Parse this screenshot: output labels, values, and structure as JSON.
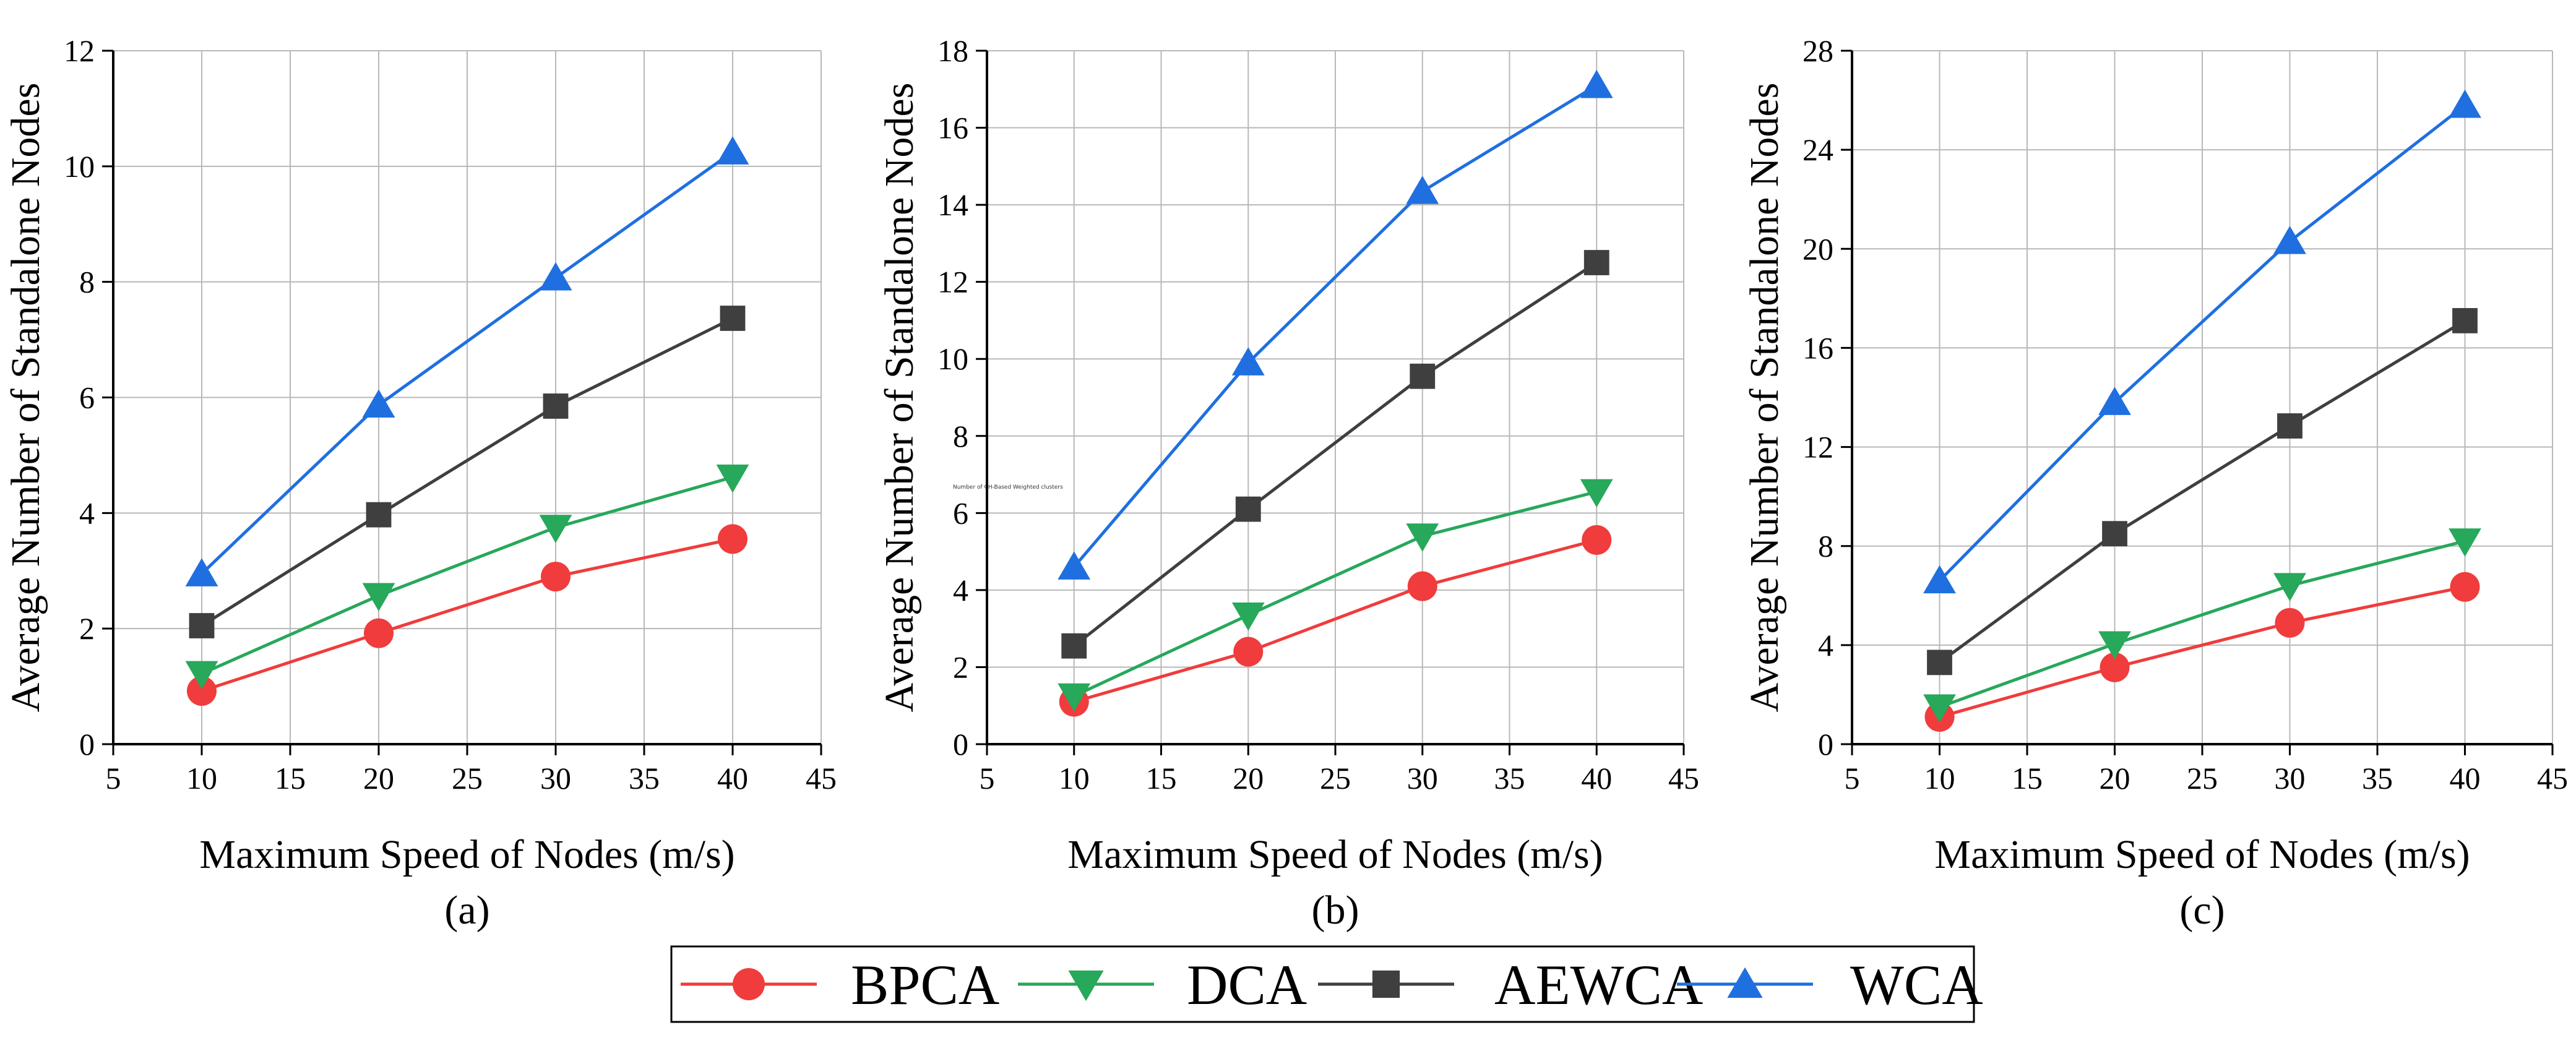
{
  "chart_data": [
    {
      "type": "line",
      "caption": "(a)",
      "xlabel": "Maximum Speed of Nodes (m/s)",
      "ylabel": "Average Number of Standalone Nodes",
      "xlim": [
        5,
        45
      ],
      "ylim": [
        0,
        12
      ],
      "xticks": [
        "5",
        "10",
        "15",
        "20",
        "25",
        "30",
        "35",
        "40",
        "45"
      ],
      "yticks": [
        "0",
        "2",
        "4",
        "6",
        "8",
        "10",
        "12"
      ],
      "grid": true,
      "x": [
        10,
        20,
        30,
        40
      ],
      "series": [
        {
          "name": "BPCA",
          "values": [
            0.92,
            1.92,
            2.9,
            3.55
          ]
        },
        {
          "name": "DCA",
          "values": [
            1.22,
            2.57,
            3.75,
            4.62
          ]
        },
        {
          "name": "AEWCA",
          "values": [
            2.05,
            3.97,
            5.85,
            7.37
          ]
        },
        {
          "name": "WCA",
          "values": [
            2.95,
            5.87,
            8.07,
            10.25
          ]
        }
      ]
    },
    {
      "type": "line",
      "caption": "(b)",
      "xlabel": "Maximum Speed of Nodes (m/s)",
      "ylabel": "Average Number of Standalone Nodes",
      "note": "Number of CH-Based Weighted clusters",
      "xlim": [
        5,
        45
      ],
      "ylim": [
        0,
        18
      ],
      "xticks": [
        "5",
        "10",
        "15",
        "20",
        "25",
        "30",
        "35",
        "40",
        "45"
      ],
      "yticks": [
        "0",
        "2",
        "4",
        "6",
        "8",
        "10",
        "12",
        "14",
        "16",
        "18"
      ],
      "grid": true,
      "x": [
        10,
        20,
        30,
        40
      ],
      "series": [
        {
          "name": "BPCA",
          "values": [
            1.1,
            2.4,
            4.1,
            5.3
          ]
        },
        {
          "name": "DCA",
          "values": [
            1.25,
            3.35,
            5.4,
            6.55
          ]
        },
        {
          "name": "AEWCA",
          "values": [
            2.55,
            6.1,
            9.55,
            12.5
          ]
        },
        {
          "name": "WCA",
          "values": [
            4.6,
            9.9,
            14.35,
            17.1
          ]
        }
      ]
    },
    {
      "type": "line",
      "caption": "(c)",
      "xlabel": "Maximum Speed of Nodes (m/s)",
      "ylabel": "Average Number of Standalone Nodes",
      "xlim": [
        5,
        45
      ],
      "ylim": [
        0,
        28
      ],
      "xticks": [
        "5",
        "10",
        "15",
        "20",
        "25",
        "30",
        "35",
        "40",
        "45"
      ],
      "yticks": [
        "0",
        "4",
        "8",
        "12",
        "16",
        "20",
        "24",
        "28"
      ],
      "grid": true,
      "x": [
        10,
        20,
        30,
        40
      ],
      "series": [
        {
          "name": "BPCA",
          "values": [
            1.1,
            3.1,
            4.9,
            6.35
          ]
        },
        {
          "name": "DCA",
          "values": [
            1.5,
            4.05,
            6.4,
            8.2
          ]
        },
        {
          "name": "AEWCA",
          "values": [
            3.3,
            8.5,
            12.85,
            17.1
          ]
        },
        {
          "name": "WCA",
          "values": [
            6.6,
            13.8,
            20.3,
            25.8
          ]
        }
      ]
    }
  ],
  "legend": {
    "position": "bottom-center",
    "entries": [
      {
        "name": "BPCA",
        "marker": "circle",
        "color": "#f03c3c"
      },
      {
        "name": "DCA",
        "marker": "triangle-down",
        "color": "#27a85a"
      },
      {
        "name": "AEWCA",
        "marker": "square",
        "color": "#3f3f3f"
      },
      {
        "name": "WCA",
        "marker": "triangle-up",
        "color": "#1f6fe0"
      }
    ]
  },
  "colors": {
    "BPCA": "#f03c3c",
    "DCA": "#27a85a",
    "AEWCA": "#3f3f3f",
    "WCA": "#1f6fe0",
    "grid": "#b8b8b8",
    "axis": "#000000"
  }
}
